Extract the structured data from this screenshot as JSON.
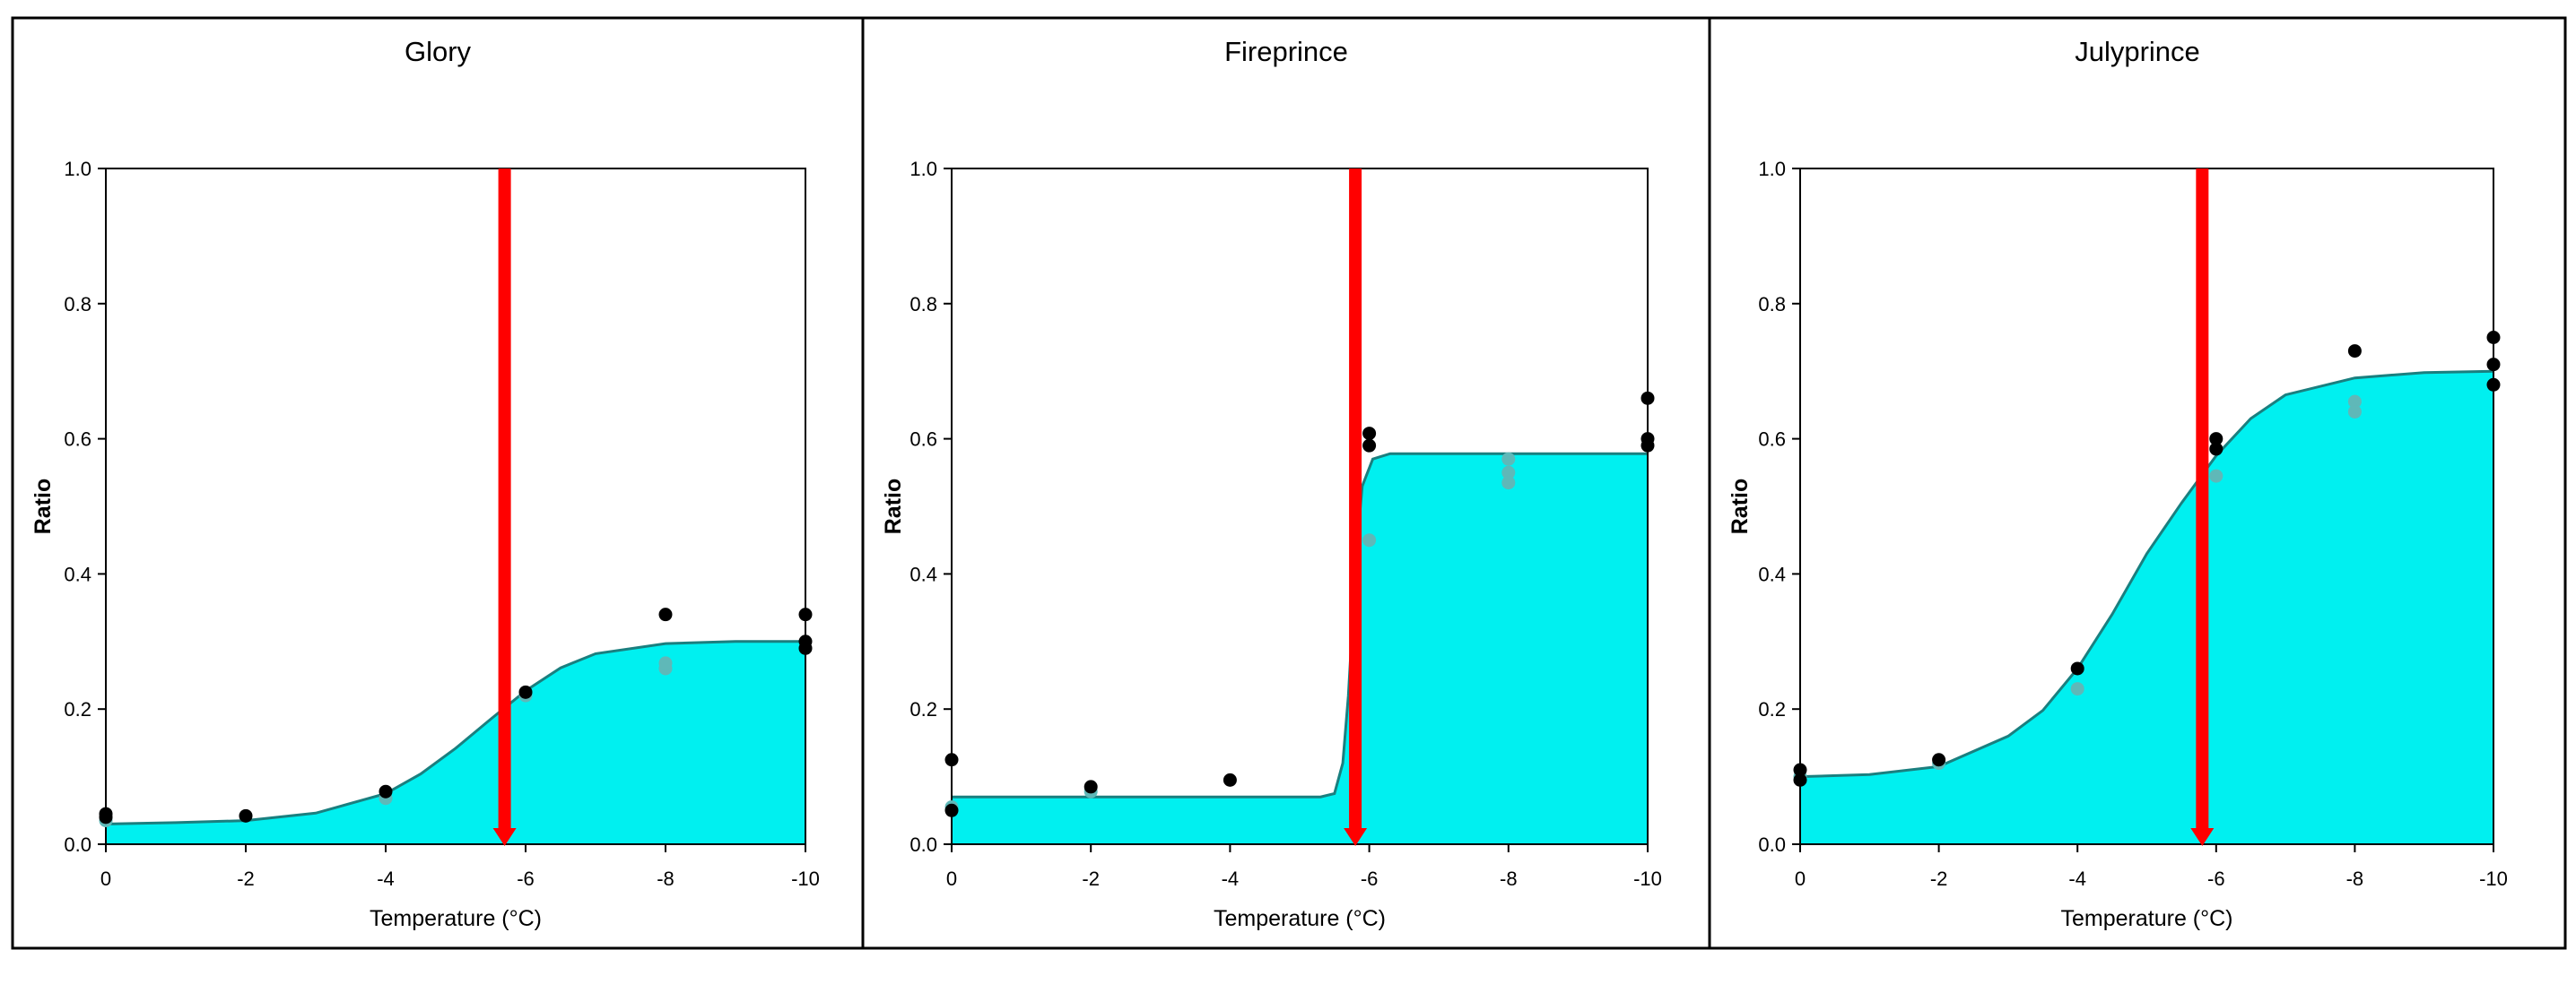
{
  "colors": {
    "fill": "#00f0f0",
    "curve": "#1a7f7f",
    "marker": "#ff0000",
    "point_dark": "#000000",
    "point_light": "#5fb8b8",
    "frame": "#000000"
  },
  "chart_data": [
    {
      "type": "scatter",
      "title": "Glory",
      "xlabel": "Temperature (°C)",
      "ylabel": "Ratio",
      "x_ticks": [
        0,
        -2,
        -4,
        -6,
        -8,
        -10
      ],
      "y_ticks": [
        0.0,
        0.2,
        0.4,
        0.6,
        0.8,
        1.0
      ],
      "xlim": [
        0,
        -10
      ],
      "ylim": [
        0,
        1.0
      ],
      "grid": false,
      "fitted_curve": [
        [
          0,
          0.03
        ],
        [
          -1,
          0.032
        ],
        [
          -2,
          0.035
        ],
        [
          -3,
          0.046
        ],
        [
          -4,
          0.075
        ],
        [
          -4.5,
          0.104
        ],
        [
          -5,
          0.142
        ],
        [
          -5.5,
          0.185
        ],
        [
          -6,
          0.227
        ],
        [
          -6.5,
          0.261
        ],
        [
          -7,
          0.282
        ],
        [
          -8,
          0.297
        ],
        [
          -9,
          0.3
        ],
        [
          -10,
          0.3
        ]
      ],
      "marker_line_x": -5.7,
      "points_dark": [
        [
          0,
          0.04
        ],
        [
          0,
          0.045
        ],
        [
          -2,
          0.042
        ],
        [
          -4,
          0.078
        ],
        [
          -6,
          0.225
        ],
        [
          -8,
          0.34
        ],
        [
          -10,
          0.34
        ],
        [
          -10,
          0.3
        ],
        [
          -10,
          0.29
        ]
      ],
      "points_light": [
        [
          0,
          0.035
        ],
        [
          -4,
          0.068
        ],
        [
          -6,
          0.22
        ],
        [
          -8,
          0.26
        ],
        [
          -8,
          0.268
        ]
      ]
    },
    {
      "type": "scatter",
      "title": "Fireprince",
      "xlabel": "Temperature (°C)",
      "ylabel": "Ratio",
      "x_ticks": [
        0,
        -2,
        -4,
        -6,
        -8,
        -10
      ],
      "y_ticks": [
        0.0,
        0.2,
        0.4,
        0.6,
        0.8,
        1.0
      ],
      "xlim": [
        0,
        -10
      ],
      "ylim": [
        0,
        1.0
      ],
      "grid": false,
      "fitted_curve": [
        [
          0,
          0.07
        ],
        [
          -5.3,
          0.07
        ],
        [
          -5.5,
          0.075
        ],
        [
          -5.62,
          0.12
        ],
        [
          -5.7,
          0.22
        ],
        [
          -5.76,
          0.33
        ],
        [
          -5.82,
          0.44
        ],
        [
          -5.9,
          0.53
        ],
        [
          -6.05,
          0.57
        ],
        [
          -6.3,
          0.578
        ],
        [
          -10,
          0.578
        ]
      ],
      "marker_line_x": -5.8,
      "points_dark": [
        [
          0,
          0.125
        ],
        [
          0,
          0.05
        ],
        [
          -2,
          0.085
        ],
        [
          -4,
          0.095
        ],
        [
          -6,
          0.608
        ],
        [
          -6,
          0.59
        ],
        [
          -10,
          0.66
        ],
        [
          -10,
          0.6
        ],
        [
          -10,
          0.59
        ]
      ],
      "points_light": [
        [
          0,
          0.055
        ],
        [
          -2,
          0.078
        ],
        [
          -6,
          0.45
        ],
        [
          -8,
          0.57
        ],
        [
          -8,
          0.55
        ],
        [
          -8,
          0.535
        ]
      ]
    },
    {
      "type": "scatter",
      "title": "Julyprince",
      "xlabel": "Temperature (°C)",
      "ylabel": "Ratio",
      "x_ticks": [
        0,
        -2,
        -4,
        -6,
        -8,
        -10
      ],
      "y_ticks": [
        0.0,
        0.2,
        0.4,
        0.6,
        0.8,
        1.0
      ],
      "xlim": [
        0,
        -10
      ],
      "ylim": [
        0,
        1.0
      ],
      "grid": false,
      "fitted_curve": [
        [
          0,
          0.1
        ],
        [
          -1,
          0.103
        ],
        [
          -2,
          0.115
        ],
        [
          -3,
          0.16
        ],
        [
          -3.5,
          0.198
        ],
        [
          -4,
          0.26
        ],
        [
          -4.5,
          0.34
        ],
        [
          -5,
          0.43
        ],
        [
          -5.5,
          0.505
        ],
        [
          -6,
          0.575
        ],
        [
          -6.5,
          0.63
        ],
        [
          -7,
          0.665
        ],
        [
          -8,
          0.69
        ],
        [
          -9,
          0.698
        ],
        [
          -10,
          0.7
        ]
      ],
      "marker_line_x": -5.8,
      "points_dark": [
        [
          0,
          0.11
        ],
        [
          0,
          0.095
        ],
        [
          -2,
          0.125
        ],
        [
          -4,
          0.26
        ],
        [
          -6,
          0.6
        ],
        [
          -6,
          0.585
        ],
        [
          -8,
          0.73
        ],
        [
          -10,
          0.75
        ],
        [
          -10,
          0.71
        ],
        [
          -10,
          0.68
        ]
      ],
      "points_light": [
        [
          0,
          0.1
        ],
        [
          -2,
          0.12
        ],
        [
          -4,
          0.23
        ],
        [
          -6,
          0.545
        ],
        [
          -8,
          0.655
        ],
        [
          -8,
          0.64
        ]
      ]
    }
  ]
}
